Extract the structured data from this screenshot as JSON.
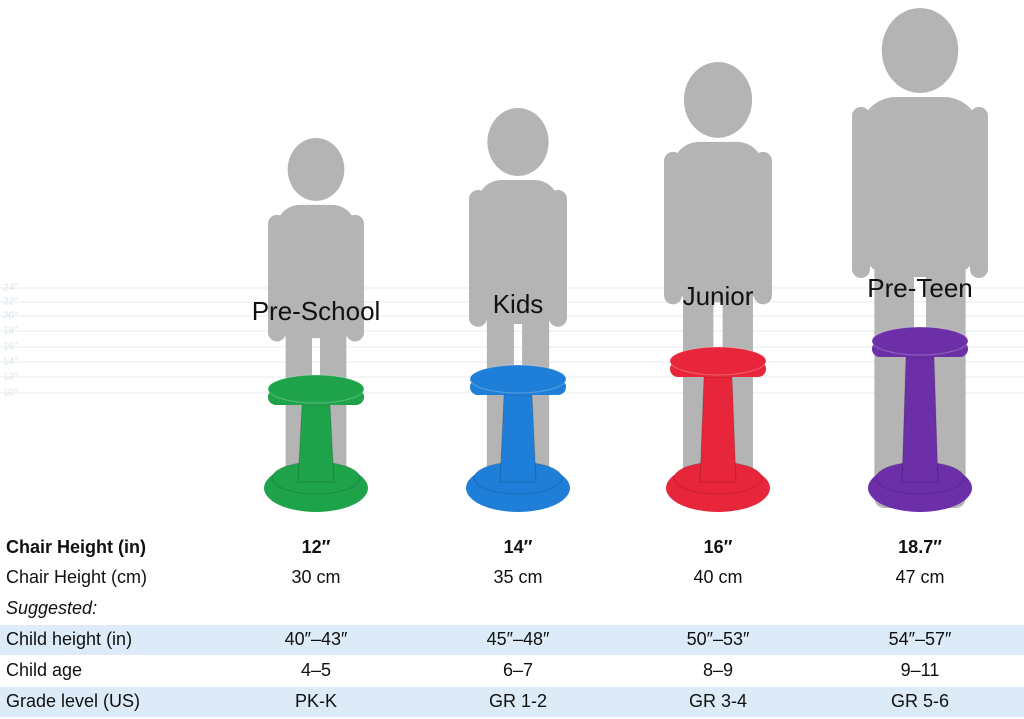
{
  "columns": [
    {
      "name": "Pre-School",
      "color": "#1ea34b"
    },
    {
      "name": "Kids",
      "color": "#1f7fd8"
    },
    {
      "name": "Junior",
      "color": "#e8263b"
    },
    {
      "name": "Pre-Teen",
      "color": "#6c2fa8"
    }
  ],
  "ruler": [
    "24″",
    "22″",
    "20″",
    "18″",
    "16″",
    "14″",
    "12″",
    "10″"
  ],
  "table": {
    "note": "Suggested:",
    "rows": [
      {
        "label": "Chair Height (in)",
        "cells": [
          "12″",
          "14″",
          "16″",
          "18.7″"
        ]
      },
      {
        "label": "Chair Height (cm)",
        "cells": [
          "30 cm",
          "35 cm",
          "40 cm",
          "47 cm"
        ]
      },
      {
        "label": "Child height (in)",
        "cells": [
          "40″–43″",
          "45″–48″",
          "50″–53″",
          "54″–57″"
        ]
      },
      {
        "label": "Child age",
        "cells": [
          "4–5",
          "6–7",
          "8–9",
          "9–11"
        ]
      },
      {
        "label": "Grade level (US)",
        "cells": [
          "PK-K",
          "GR 1-2",
          "GR 3-4",
          "GR 5-6"
        ]
      }
    ]
  }
}
